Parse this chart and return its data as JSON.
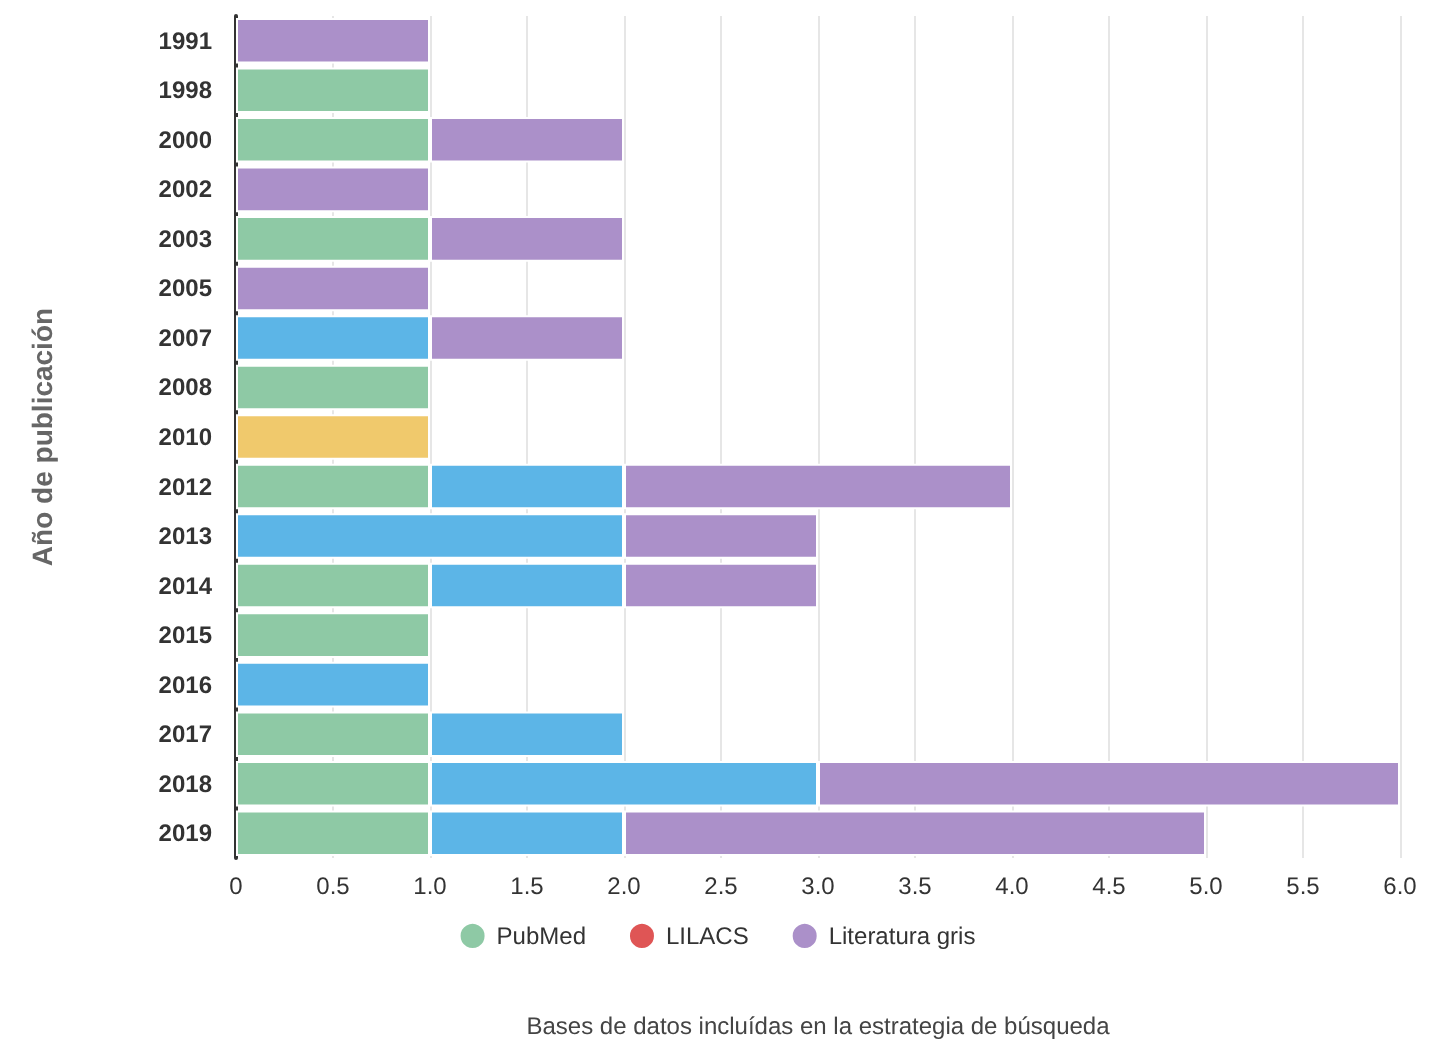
{
  "chart_data": {
    "type": "bar",
    "orientation": "horizontal",
    "stacked": true,
    "xlabel": "Bases de datos incluídas en la estrategia de búsqueda",
    "ylabel": "Año de publicación",
    "categories": [
      "1991",
      "1998",
      "2000",
      "2002",
      "2003",
      "2005",
      "2007",
      "2008",
      "2010",
      "2012",
      "2013",
      "2014",
      "2015",
      "2016",
      "2017",
      "2018",
      "2019"
    ],
    "series": [
      {
        "name": "PubMed",
        "color": "#8ec9a5",
        "values": [
          0,
          1,
          1,
          0,
          1,
          0,
          0,
          1,
          0,
          1,
          0,
          1,
          1,
          0,
          1,
          1,
          1
        ]
      },
      {
        "name": "LILACS",
        "color": "#df5555",
        "values": [
          0,
          0,
          0,
          0,
          0,
          0,
          0,
          0,
          0,
          0,
          0,
          0,
          0,
          0,
          0,
          0,
          0
        ]
      },
      {
        "color": "#f0c96c",
        "values": [
          0,
          0,
          0,
          0,
          0,
          0,
          0,
          0,
          1,
          0,
          0,
          0,
          0,
          0,
          0,
          0,
          0
        ]
      },
      {
        "color": "#5cb5e7",
        "values": [
          0,
          0,
          0,
          0,
          0,
          0,
          1,
          0,
          0,
          1,
          2,
          1,
          0,
          1,
          1,
          2,
          1
        ]
      },
      {
        "name": "Literatura gris",
        "color": "#ab90c9",
        "values": [
          1,
          0,
          1,
          1,
          1,
          1,
          1,
          0,
          0,
          2,
          1,
          1,
          0,
          0,
          0,
          3,
          3
        ]
      }
    ],
    "xlim": [
      0,
      6
    ],
    "xticks": [
      0,
      {
        "value": 0.5,
        "label": "0.5"
      },
      {
        "value": 1,
        "label": "1.0"
      },
      {
        "value": 1.5,
        "label": "1.5"
      },
      {
        "value": 2,
        "label": "2.0"
      },
      {
        "value": 2.5,
        "label": "2.5"
      },
      {
        "value": 3,
        "label": "3.0"
      },
      {
        "value": 3.5,
        "label": "3.5"
      },
      {
        "value": 4,
        "label": "4.0"
      },
      {
        "value": 4.5,
        "label": "4.5"
      },
      {
        "value": 5,
        "label": "5.0"
      },
      {
        "value": 5.5,
        "label": "5.5"
      },
      {
        "value": 6,
        "label": "6.0"
      }
    ],
    "grid": "x",
    "legend": "bottom"
  }
}
